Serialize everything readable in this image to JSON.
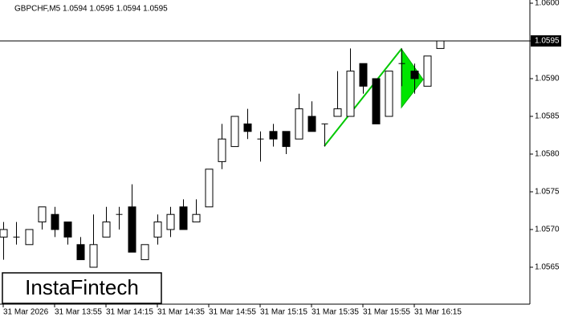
{
  "chart_data": {
    "type": "candlestick",
    "title": "GBPCHF,M5  1.0594 1.0595 1.0594 1.0595",
    "watermark": "InstaFintech",
    "categories": [
      "31 Mar 2026",
      null,
      null,
      null,
      "31 Mar 13:55",
      null,
      null,
      null,
      "31 Mar 14:15",
      null,
      null,
      null,
      "31 Mar 14:35",
      null,
      null,
      null,
      "31 Mar 14:55",
      null,
      null,
      null,
      "31 Mar 15:15",
      null,
      null,
      null,
      "31 Mar 15:35",
      null,
      null,
      null,
      "31 Mar 15:55",
      null,
      null,
      null,
      "31 Mar 16:15",
      null,
      null
    ],
    "open": [
      1.0569,
      1.0569,
      1.0568,
      1.0571,
      1.0572,
      1.0571,
      1.0568,
      1.0565,
      1.0569,
      1.0572,
      1.0573,
      1.0566,
      1.0569,
      1.057,
      1.0573,
      1.0571,
      1.0573,
      1.0579,
      1.0581,
      1.0584,
      1.0582,
      1.0583,
      1.0583,
      1.0582,
      1.0585,
      1.0584,
      1.0585,
      1.0585,
      1.0592,
      1.059,
      1.0585,
      1.0592,
      1.0591,
      1.0589,
      1.0594
    ],
    "high": [
      1.0571,
      1.0571,
      1.057,
      1.0573,
      1.0573,
      1.0571,
      1.0569,
      1.0572,
      1.0573,
      1.0573,
      1.0576,
      1.0568,
      1.0572,
      1.0573,
      1.0574,
      1.0574,
      1.0578,
      1.0584,
      1.0585,
      1.0586,
      1.0583,
      1.0584,
      1.0583,
      1.0588,
      1.0587,
      1.0584,
      1.0591,
      1.0594,
      1.0592,
      1.059,
      1.0591,
      1.0594,
      1.0592,
      1.0593,
      1.0595
    ],
    "low": [
      1.0566,
      1.0568,
      1.0568,
      1.057,
      1.0569,
      1.0568,
      1.0566,
      1.0565,
      1.0569,
      1.057,
      1.0567,
      1.0566,
      1.0568,
      1.0569,
      1.057,
      1.0571,
      1.0573,
      1.0578,
      1.0581,
      1.0582,
      1.0579,
      1.0581,
      1.058,
      1.0582,
      1.0583,
      1.0581,
      1.0585,
      1.0585,
      1.0588,
      1.0584,
      1.0585,
      1.0589,
      1.0588,
      1.0589,
      1.0594
    ],
    "close": [
      1.057,
      1.0569,
      1.057,
      1.0573,
      1.057,
      1.0569,
      1.0566,
      1.0568,
      1.0571,
      1.0572,
      1.0567,
      1.0568,
      1.0571,
      1.0572,
      1.057,
      1.0572,
      1.0578,
      1.0582,
      1.0585,
      1.0583,
      1.0582,
      1.0582,
      1.0581,
      1.0586,
      1.0583,
      1.0584,
      1.0586,
      1.0591,
      1.0589,
      1.0584,
      1.0591,
      1.0592,
      1.059,
      1.0593,
      1.0595
    ],
    "up_color": "#ffffff",
    "down_color": "#000000",
    "ylim": [
      1.056,
      1.06
    ],
    "yticks": [
      1.0565,
      {
        "value": 1.057,
        "label": "1.0570"
      },
      1.0575,
      {
        "value": 1.058,
        "label": "1.0580"
      },
      1.0585,
      {
        "value": 1.059,
        "label": "1.0590"
      },
      1.0595,
      {
        "value": 1.06,
        "label": "1.0600"
      }
    ],
    "current_price": 1.0595,
    "grid": false
  }
}
